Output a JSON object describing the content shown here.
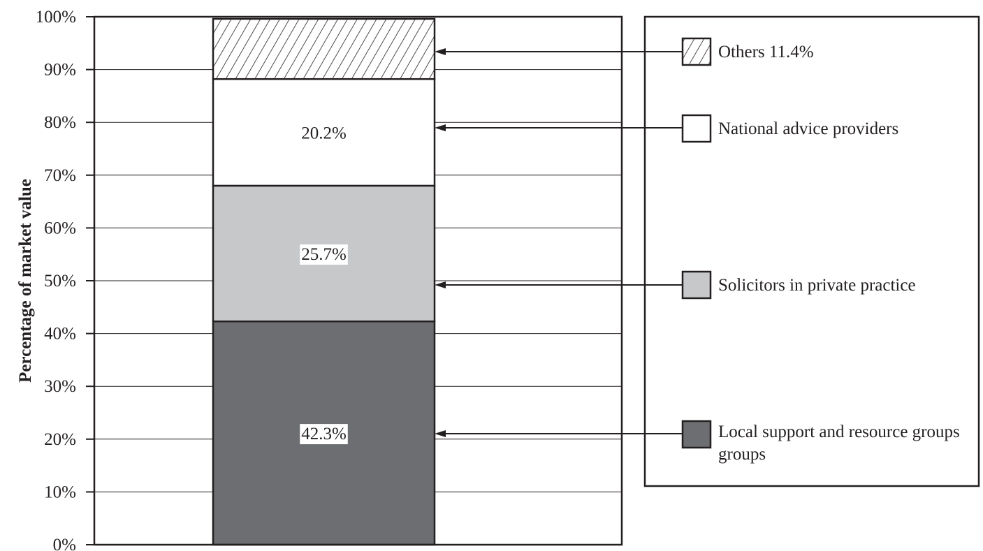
{
  "chart_data": {
    "type": "bar",
    "stacked": true,
    "orientation": "vertical",
    "ylabel": "Percentage of market value",
    "ylim": [
      0,
      100
    ],
    "yticks": [
      0,
      10,
      20,
      30,
      40,
      50,
      60,
      70,
      80,
      90,
      100
    ],
    "ytick_labels": [
      "0%",
      "10%",
      "20%",
      "30%",
      "40%",
      "50%",
      "60%",
      "70%",
      "80%",
      "90%",
      "100%"
    ],
    "grid": true,
    "legend_position": "right",
    "series": [
      {
        "name": "Local support and resource groups",
        "value": 42.3,
        "label": "42.3%",
        "color": "#6d6e71",
        "pattern": "solid"
      },
      {
        "name": "Solicitors in private practice",
        "value": 25.7,
        "label": "25.7%",
        "color": "#c7c8ca",
        "pattern": "solid"
      },
      {
        "name": "National advice providers",
        "value": 20.2,
        "label": "20.2%",
        "color": "#ffffff",
        "pattern": "solid"
      },
      {
        "name": "Others",
        "value": 11.4,
        "label": "",
        "color": "#ffffff",
        "pattern": "hatch"
      }
    ],
    "legend": [
      {
        "lines": [
          "Others 11.4%"
        ],
        "series": "Others"
      },
      {
        "lines": [
          "National advice providers"
        ],
        "series": "National advice providers"
      },
      {
        "lines": [
          "Solicitors in private practice"
        ],
        "series": "Solicitors in private practice"
      },
      {
        "lines": [
          "Local support and resource groups",
          "groups"
        ],
        "series": "Local support and resource groups"
      }
    ]
  }
}
